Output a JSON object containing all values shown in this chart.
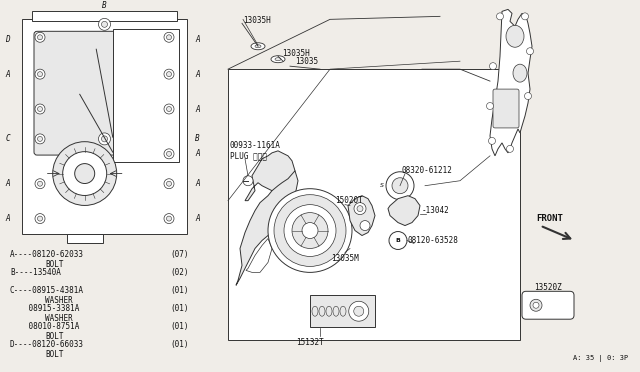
{
  "bg_color": "#f0ede8",
  "page_ref": "A: 35 | 0: 3P",
  "line_color": "#333333",
  "text_color": "#111111",
  "white": "#ffffff",
  "light_gray": "#e8e8e8",
  "legend": [
    [
      "A----08120-62033",
      "(07)",
      "BOLT"
    ],
    [
      "B----13540A",
      "(02)",
      ""
    ],
    [
      "C----08915-4381A",
      "(01)",
      "WASHER"
    ],
    [
      "    08915-3381A",
      "(01)",
      "WASHER"
    ],
    [
      "    08010-8751A",
      "(01)",
      "BOLT"
    ],
    [
      "D----08120-66033",
      "(01)",
      "BOLT"
    ]
  ]
}
